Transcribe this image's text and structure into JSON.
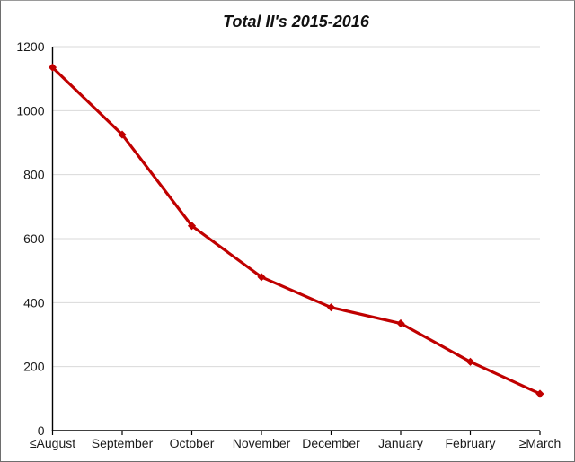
{
  "window": {
    "background": "#ffffff",
    "border_color": "#6e6e6e"
  },
  "chart_data": {
    "type": "line",
    "title": "Total II's 2015-2016",
    "categories": [
      "≤August",
      "September",
      "October",
      "November",
      "December",
      "January",
      "February",
      "≥March"
    ],
    "series": [
      {
        "color": "#C00000",
        "marker": "diamond",
        "values": [
          1135,
          925,
          640,
          480,
          385,
          335,
          215,
          115
        ]
      }
    ],
    "xlabel": "",
    "ylabel": "",
    "ylim": [
      0,
      1200
    ],
    "yticks": [
      0,
      200,
      400,
      600,
      800,
      1000,
      1200
    ],
    "grid": "horizontal",
    "legend": "none",
    "colors": {
      "line": "#C00000",
      "gridline": "#D9D9D9",
      "axis": "#000000",
      "tick_text": "#1a1a1a",
      "plot_background": "#ffffff"
    }
  }
}
